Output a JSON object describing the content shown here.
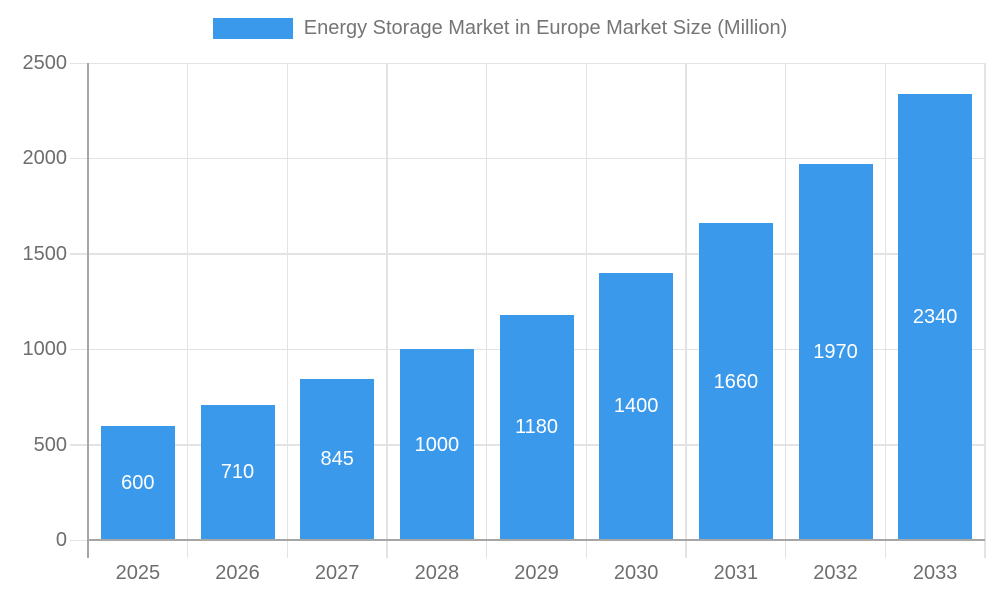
{
  "chart_data": {
    "type": "bar",
    "series_name": "Energy Storage Market in Europe Market Size (Million)",
    "categories": [
      "2025",
      "2026",
      "2027",
      "2028",
      "2029",
      "2030",
      "2031",
      "2032",
      "2033"
    ],
    "values": [
      600,
      710,
      845,
      1000,
      1180,
      1400,
      1660,
      1970,
      2340
    ],
    "title": "Energy Storage Market in Europe Market Size (Million)",
    "xlabel": "",
    "ylabel": "",
    "ylim": [
      0,
      2500
    ],
    "yticks": [
      0,
      500,
      1000,
      1500,
      2000,
      2500
    ],
    "grid": true,
    "legend_position": "top",
    "value_labels": "centered-inside-bars"
  },
  "colors": {
    "bar": "#3b99ec",
    "grid": "#e3e3e3",
    "axis": "#a6a6a6",
    "axis_label": "#6e6e6e",
    "title_text": "#757575",
    "value_label": "#ffffff",
    "background": "#ffffff"
  }
}
